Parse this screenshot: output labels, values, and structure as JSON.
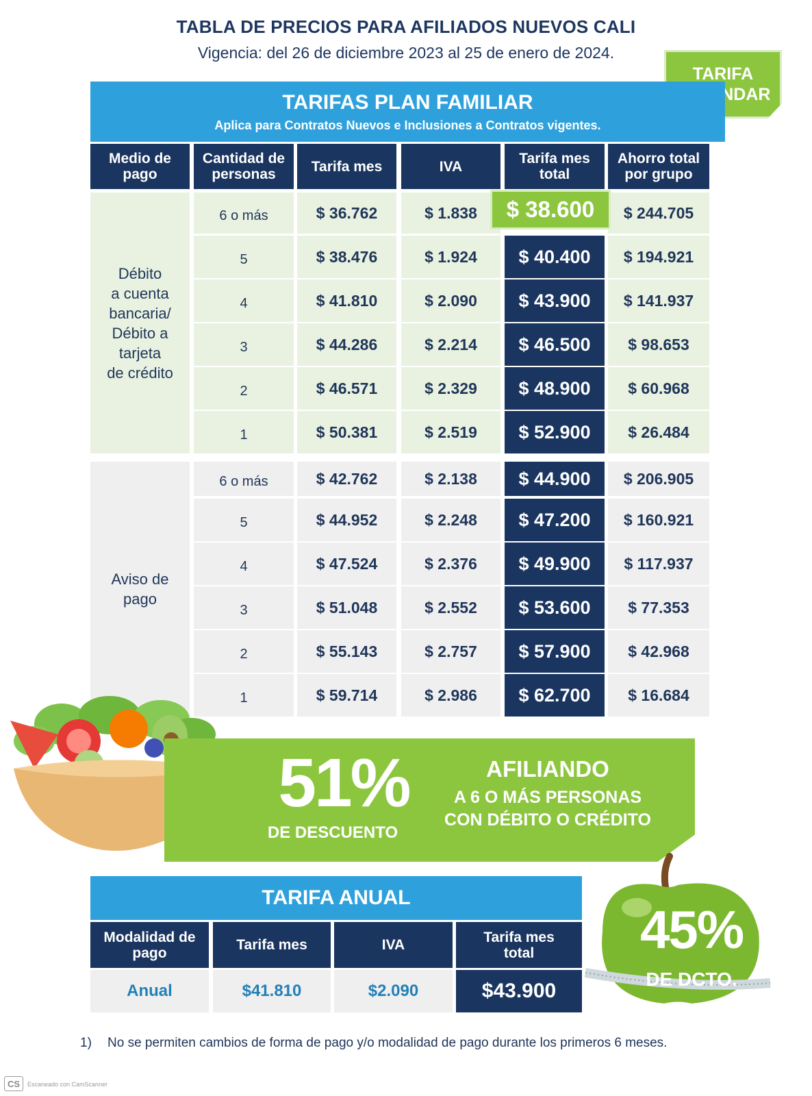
{
  "header": {
    "title": "TABLA DE PRECIOS PARA AFILIADOS NUEVOS CALI",
    "subtitle": "Vigencia: del 26 de diciembre 2023 al 25 de enero de 2024."
  },
  "badge": {
    "line1": "TARIFA",
    "line2": "ESTÁNDAR",
    "color": "#8cc63f"
  },
  "plan": {
    "title": "TARIFAS PLAN FAMILIAR",
    "subtitle": "Aplica para Contratos Nuevos e Inclusiones a Contratos vigentes.",
    "headers": [
      {
        "l1": "Medio de",
        "l2": "pago"
      },
      {
        "l1": "Cantidad de",
        "l2": "personas"
      },
      {
        "l1": "Tarifa mes",
        "l2": ""
      },
      {
        "l1": "IVA",
        "l2": ""
      },
      {
        "l1": "Tarifa mes",
        "l2": "total"
      },
      {
        "l1": "Ahorro total",
        "l2": "por grupo"
      }
    ],
    "groups": [
      {
        "medio_lines": [
          "Débito",
          "a cuenta",
          "bancaria/",
          "Débito a",
          "tarjeta",
          "de crédito"
        ],
        "rows": [
          {
            "personas": "6 o más",
            "tarifa": "$ 36.762",
            "iva": "$ 1.838",
            "total": "$ 38.600",
            "ahorro": "$ 244.705"
          },
          {
            "personas": "5",
            "tarifa": "$ 38.476",
            "iva": "$ 1.924",
            "total": "$ 40.400",
            "ahorro": "$ 194.921"
          },
          {
            "personas": "4",
            "tarifa": "$ 41.810",
            "iva": "$ 2.090",
            "total": "$ 43.900",
            "ahorro": "$ 141.937"
          },
          {
            "personas": "3",
            "tarifa": "$ 44.286",
            "iva": "$ 2.214",
            "total": "$ 46.500",
            "ahorro": "$ 98.653"
          },
          {
            "personas": "2",
            "tarifa": "$ 46.571",
            "iva": "$ 2.329",
            "total": "$ 48.900",
            "ahorro": "$ 60.968"
          },
          {
            "personas": "1",
            "tarifa": "$ 50.381",
            "iva": "$ 2.519",
            "total": "$ 52.900",
            "ahorro": "$ 26.484"
          }
        ]
      },
      {
        "medio_lines": [
          "Aviso de",
          "pago"
        ],
        "rows": [
          {
            "personas": "6  o más",
            "tarifa": "$ 42.762",
            "iva": "$ 2.138",
            "total": "$ 44.900",
            "ahorro": "$ 206.905"
          },
          {
            "personas": "5",
            "tarifa": "$ 44.952",
            "iva": "$ 2.248",
            "total": "$ 47.200",
            "ahorro": "$ 160.921"
          },
          {
            "personas": "4",
            "tarifa": "$ 47.524",
            "iva": "$ 2.376",
            "total": "$ 49.900",
            "ahorro": "$ 117.937"
          },
          {
            "personas": "3",
            "tarifa": "$ 51.048",
            "iva": "$ 2.552",
            "total": "$ 53.600",
            "ahorro": "$ 77.353"
          },
          {
            "personas": "2",
            "tarifa": "$ 55.143",
            "iva": "$ 2.757",
            "total": "$ 57.900",
            "ahorro": "$ 42.968"
          },
          {
            "personas": "1",
            "tarifa": "$ 59.714",
            "iva": "$ 2.986",
            "total": "$ 62.700",
            "ahorro": "$ 16.684"
          }
        ]
      }
    ]
  },
  "promo": {
    "percent": "51%",
    "discount_label": "DE DESCUENTO",
    "title": "AFILIANDO",
    "line1": "A 6 O MÁS PERSONAS",
    "line2": "CON DÉBITO O CRÉDITO"
  },
  "annual": {
    "title": "TARIFA ANUAL",
    "headers": [
      {
        "l1": "Modalidad de",
        "l2": "pago"
      },
      {
        "l1": "Tarifa mes",
        "l2": ""
      },
      {
        "l1": "IVA",
        "l2": ""
      },
      {
        "l1": "Tarifa mes",
        "l2": "total"
      }
    ],
    "row": {
      "modalidad": "Anual",
      "tarifa": "$41.810",
      "iva": "$2.090",
      "total": "$43.900"
    }
  },
  "apple": {
    "percent": "45%",
    "label": "DE DCTO."
  },
  "footnote": {
    "number": "1)",
    "text": "No se permiten cambios de forma de pago y/o modalidad de pago durante los primeros 6 meses."
  },
  "scanner": {
    "logo": "CS",
    "text": "Escaneado con CamScanner"
  },
  "colors": {
    "navy": "#1a355f",
    "blue": "#2ea1dd",
    "green": "#8cc63f",
    "light_green": "#e9f2e0",
    "light_gray": "#efefef"
  }
}
